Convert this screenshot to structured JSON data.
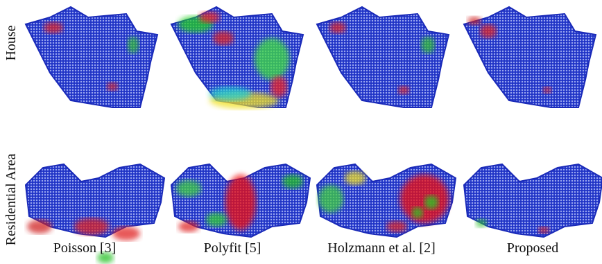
{
  "rows": [
    {
      "label": "House"
    },
    {
      "label": "Residential Area"
    }
  ],
  "columns": [
    {
      "label": "Poisson [3]"
    },
    {
      "label": "Polyfit [5]"
    },
    {
      "label": "Holzmann et al. [2]"
    },
    {
      "label": "Proposed"
    }
  ]
}
